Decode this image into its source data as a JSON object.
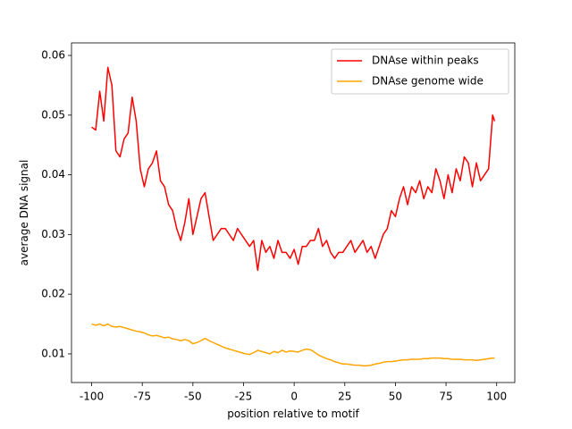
{
  "chart_data": {
    "type": "line",
    "xlabel": "position relative to motif",
    "ylabel": "average DNA signal",
    "x": [
      -100,
      -98,
      -96,
      -94,
      -92,
      -90,
      -88,
      -86,
      -84,
      -82,
      -80,
      -78,
      -76,
      -74,
      -72,
      -70,
      -68,
      -66,
      -64,
      -62,
      -60,
      -58,
      -56,
      -54,
      -52,
      -50,
      -48,
      -46,
      -44,
      -42,
      -40,
      -38,
      -36,
      -34,
      -32,
      -30,
      -28,
      -26,
      -24,
      -22,
      -20,
      -18,
      -16,
      -14,
      -12,
      -10,
      -8,
      -6,
      -4,
      -2,
      0,
      2,
      4,
      6,
      8,
      10,
      12,
      14,
      16,
      18,
      20,
      22,
      24,
      26,
      28,
      30,
      32,
      34,
      36,
      38,
      40,
      42,
      44,
      46,
      48,
      50,
      52,
      54,
      56,
      58,
      60,
      62,
      64,
      66,
      68,
      70,
      72,
      74,
      76,
      78,
      80,
      82,
      84,
      86,
      88,
      90,
      92,
      94,
      96,
      98,
      99
    ],
    "series": [
      {
        "name": "DNAse within peaks",
        "color": "#ff0000",
        "values": [
          0.048,
          0.0475,
          0.054,
          0.049,
          0.058,
          0.055,
          0.044,
          0.043,
          0.046,
          0.047,
          0.053,
          0.049,
          0.041,
          0.038,
          0.041,
          0.042,
          0.044,
          0.039,
          0.038,
          0.035,
          0.034,
          0.031,
          0.029,
          0.032,
          0.036,
          0.03,
          0.033,
          0.036,
          0.037,
          0.033,
          0.029,
          0.03,
          0.031,
          0.031,
          0.03,
          0.029,
          0.031,
          0.03,
          0.029,
          0.028,
          0.029,
          0.024,
          0.029,
          0.027,
          0.028,
          0.026,
          0.029,
          0.027,
          0.027,
          0.026,
          0.0275,
          0.025,
          0.028,
          0.028,
          0.029,
          0.029,
          0.031,
          0.028,
          0.029,
          0.027,
          0.026,
          0.027,
          0.027,
          0.028,
          0.029,
          0.027,
          0.028,
          0.029,
          0.027,
          0.028,
          0.026,
          0.028,
          0.03,
          0.031,
          0.034,
          0.033,
          0.036,
          0.038,
          0.035,
          0.038,
          0.037,
          0.039,
          0.036,
          0.038,
          0.037,
          0.041,
          0.039,
          0.036,
          0.04,
          0.037,
          0.041,
          0.039,
          0.043,
          0.042,
          0.038,
          0.042,
          0.039,
          0.04,
          0.041,
          0.05,
          0.049
        ]
      },
      {
        "name": "DNAse genome wide",
        "color": "#ffa500",
        "values": [
          0.015,
          0.0148,
          0.015,
          0.0147,
          0.015,
          0.0146,
          0.0145,
          0.0146,
          0.0144,
          0.0142,
          0.014,
          0.0138,
          0.0137,
          0.0135,
          0.0132,
          0.013,
          0.0131,
          0.0129,
          0.0127,
          0.0128,
          0.0125,
          0.0124,
          0.0122,
          0.0124,
          0.0122,
          0.0117,
          0.0119,
          0.0122,
          0.0126,
          0.0122,
          0.0119,
          0.0116,
          0.0113,
          0.011,
          0.0108,
          0.0106,
          0.0104,
          0.0102,
          0.01,
          0.0099,
          0.0102,
          0.0106,
          0.0104,
          0.0102,
          0.01,
          0.0104,
          0.0102,
          0.0106,
          0.0103,
          0.0105,
          0.0104,
          0.0103,
          0.0106,
          0.0108,
          0.0107,
          0.0103,
          0.0098,
          0.0095,
          0.0092,
          0.009,
          0.0087,
          0.0085,
          0.0083,
          0.0083,
          0.0082,
          0.0081,
          0.0081,
          0.008,
          0.008,
          0.0081,
          0.0083,
          0.0084,
          0.0086,
          0.0087,
          0.0087,
          0.0088,
          0.0089,
          0.009,
          0.009,
          0.0091,
          0.0091,
          0.0091,
          0.0092,
          0.0092,
          0.0093,
          0.0093,
          0.0093,
          0.0092,
          0.0092,
          0.0091,
          0.0091,
          0.0091,
          0.009,
          0.009,
          0.009,
          0.0089,
          0.009,
          0.0091,
          0.0092,
          0.0093,
          0.0093
        ]
      }
    ],
    "xlim": [
      -109.95,
      108.95
    ],
    "xticks": [
      -100,
      -75,
      -50,
      -25,
      0,
      25,
      50,
      75,
      100
    ],
    "ylim": [
      0.0052,
      0.0621
    ],
    "yticks": [
      0.01,
      0.02,
      0.03,
      0.04,
      0.05,
      0.06
    ],
    "legend": "upper right"
  }
}
